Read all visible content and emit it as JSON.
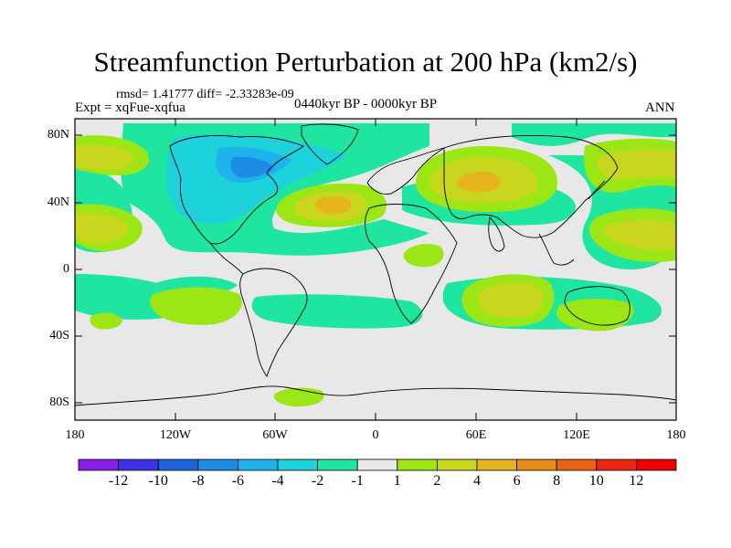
{
  "title": "Streamfunction Perturbation at 200 hPa (km2/s)",
  "stats": "rmsd= 1.41777 diff= -2.33283e-09",
  "experiment": "Expt = xqFue-xqfua",
  "period": "0440kyr BP - 0000kyr BP",
  "season": "ANN",
  "axes": {
    "lat_ticks": [
      "80N",
      "40N",
      "0",
      "40S",
      "80S"
    ],
    "lon_ticks": [
      "180",
      "120W",
      "60W",
      "0",
      "60E",
      "120E",
      "180"
    ]
  },
  "colorbar": {
    "labels": [
      "-12",
      "-10",
      "-8",
      "-6",
      "-4",
      "-2",
      "-1",
      "1",
      "2",
      "4",
      "6",
      "8",
      "10",
      "12"
    ],
    "colors": [
      "#8a1fe8",
      "#3c32e3",
      "#1e64dc",
      "#1e8ce6",
      "#1eb4eb",
      "#1ed2dc",
      "#1ee6a0",
      "#e8e8e8",
      "#9be614",
      "#c8d71e",
      "#e6b41e",
      "#e68c14",
      "#e66414",
      "#e62814",
      "#f00000"
    ]
  }
}
